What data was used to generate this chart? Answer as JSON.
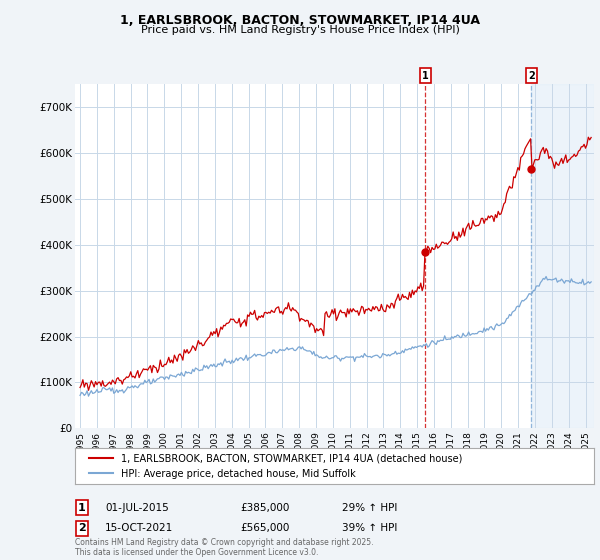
{
  "title_line1": "1, EARLSBROOK, BACTON, STOWMARKET, IP14 4UA",
  "title_line2": "Price paid vs. HM Land Registry's House Price Index (HPI)",
  "ylim": [
    0,
    750000
  ],
  "yticks": [
    0,
    100000,
    200000,
    300000,
    400000,
    500000,
    600000,
    700000
  ],
  "ytick_labels": [
    "£0",
    "£100K",
    "£200K",
    "£300K",
    "£400K",
    "£500K",
    "£600K",
    "£700K"
  ],
  "house_color": "#cc0000",
  "hpi_color": "#7ba7d4",
  "marker1_date": 2015.5,
  "marker1_value": 385000,
  "marker1_label": "1",
  "marker1_text": "01-JUL-2015",
  "marker1_price": "£385,000",
  "marker1_hpi": "29% ↑ HPI",
  "marker1_vline_color": "#cc0000",
  "marker2_date": 2021.79,
  "marker2_value": 565000,
  "marker2_label": "2",
  "marker2_text": "15-OCT-2021",
  "marker2_price": "£565,000",
  "marker2_hpi": "39% ↑ HPI",
  "marker2_vline_color": "#7ba7d4",
  "legend_line1": "1, EARLSBROOK, BACTON, STOWMARKET, IP14 4UA (detached house)",
  "legend_line2": "HPI: Average price, detached house, Mid Suffolk",
  "footnote": "Contains HM Land Registry data © Crown copyright and database right 2025.\nThis data is licensed under the Open Government Licence v3.0.",
  "background_color": "#f0f4f8",
  "plot_bg_color": "#ffffff",
  "grid_color": "#c8d8e8",
  "shade2_color": "#e0ecf8"
}
